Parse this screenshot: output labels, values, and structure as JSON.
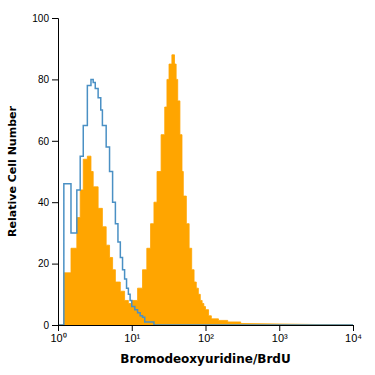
{
  "chart_data": {
    "type": "area",
    "xlabel": "Bromodeoxyuridine/BrdU",
    "ylabel": "Relative Cell Number",
    "log": "x",
    "xlim": [
      1,
      10000
    ],
    "ylim": [
      0,
      100
    ],
    "xticks": [
      {
        "value": 1,
        "label": "10⁰"
      },
      {
        "value": 10,
        "label": "10¹"
      },
      {
        "value": 100,
        "label": "10²"
      },
      {
        "value": 1000,
        "label": "10³"
      },
      {
        "value": 10000,
        "label": "10⁴"
      }
    ],
    "yticks": [
      0,
      20,
      40,
      60,
      80,
      100
    ],
    "series": [
      {
        "type": "area",
        "color": "#FFA500",
        "x": [
          1.0,
          1.2,
          1.2,
          1.5,
          1.5,
          1.8,
          1.8,
          2.0,
          2.0,
          2.2,
          2.2,
          2.5,
          2.5,
          2.8,
          2.8,
          3.0,
          3.0,
          3.5,
          3.5,
          4.0,
          4.0,
          4.5,
          4.5,
          5.0,
          5.0,
          5.5,
          5.5,
          6.0,
          6.0,
          7.0,
          7.0,
          8.0,
          8.0,
          9.0,
          9.0,
          10.0,
          10.0,
          12.0,
          12.0,
          14.0,
          14.0,
          16.0,
          16.0,
          18.0,
          18.0,
          20.0,
          20.0,
          22.0,
          22.0,
          25.0,
          25.0,
          28.0,
          28.0,
          30.0,
          30.0,
          32.0,
          32.0,
          35.0,
          35.0,
          38.0,
          38.0,
          40.0,
          40.0,
          42.0,
          42.0,
          45.0,
          45.0,
          48.0,
          48.0,
          50.0,
          50.0,
          55.0,
          55.0,
          60.0,
          60.0,
          65.0,
          65.0,
          70.0,
          70.0,
          75.0,
          75.0,
          80.0,
          80.0,
          85.0,
          85.0,
          90.0,
          90.0,
          95.0,
          95.0,
          100.0,
          100.0,
          110.0,
          110.0,
          120.0,
          120.0,
          150.0,
          150.0,
          200.0,
          200.0,
          300.0,
          300.0,
          10000
        ],
        "values": [
          0,
          0,
          17,
          17,
          25,
          25,
          35,
          35,
          44,
          44,
          54,
          54,
          55,
          55,
          50,
          50,
          45,
          45,
          38,
          38,
          32,
          32,
          26,
          26,
          22,
          22,
          18,
          18,
          14,
          14,
          11,
          11,
          8,
          8,
          7,
          7,
          8,
          8,
          12,
          12,
          18,
          18,
          25,
          25,
          33,
          33,
          40,
          40,
          50,
          50,
          62,
          62,
          71,
          71,
          80,
          80,
          85,
          85,
          88,
          88,
          85,
          85,
          80,
          80,
          73,
          73,
          62,
          62,
          50,
          50,
          42,
          42,
          33,
          33,
          25,
          25,
          18,
          18,
          14,
          14,
          12,
          12,
          10,
          10,
          8,
          8,
          7,
          7,
          6,
          6,
          5,
          5,
          3,
          3,
          2,
          2,
          1.5,
          1.5,
          1,
          1,
          0.5,
          0
        ]
      },
      {
        "type": "line",
        "color": "#4A90C4",
        "x": [
          1.0,
          1.2,
          1.2,
          1.5,
          1.5,
          1.8,
          1.8,
          2.0,
          2.0,
          2.2,
          2.2,
          2.5,
          2.5,
          2.8,
          2.8,
          3.0,
          3.0,
          3.2,
          3.2,
          3.5,
          3.5,
          3.8,
          3.8,
          4.0,
          4.0,
          4.5,
          4.5,
          5.0,
          5.0,
          5.5,
          5.5,
          6.0,
          6.0,
          6.5,
          6.5,
          7.0,
          7.0,
          7.5,
          7.5,
          8.0,
          8.0,
          8.5,
          8.5,
          9.0,
          9.0,
          9.5,
          9.5,
          10.0,
          10.0,
          11.0,
          11.0,
          12.0,
          12.0,
          13.0,
          13.0,
          14.0,
          14.0,
          15.0,
          15.0,
          20.0,
          20.0,
          10000
        ],
        "values": [
          0,
          0,
          46,
          46,
          30,
          30,
          44,
          44,
          55,
          55,
          65,
          65,
          78,
          78,
          80,
          80,
          79,
          79,
          77,
          77,
          74,
          74,
          70,
          70,
          65,
          65,
          58,
          58,
          50,
          50,
          40,
          40,
          33,
          33,
          27,
          27,
          22,
          22,
          18,
          18,
          15,
          15,
          12,
          12,
          10,
          10,
          8,
          8,
          6,
          6,
          5,
          5,
          4,
          4,
          3,
          3,
          2.5,
          2.5,
          1,
          1,
          0,
          0
        ]
      }
    ]
  }
}
